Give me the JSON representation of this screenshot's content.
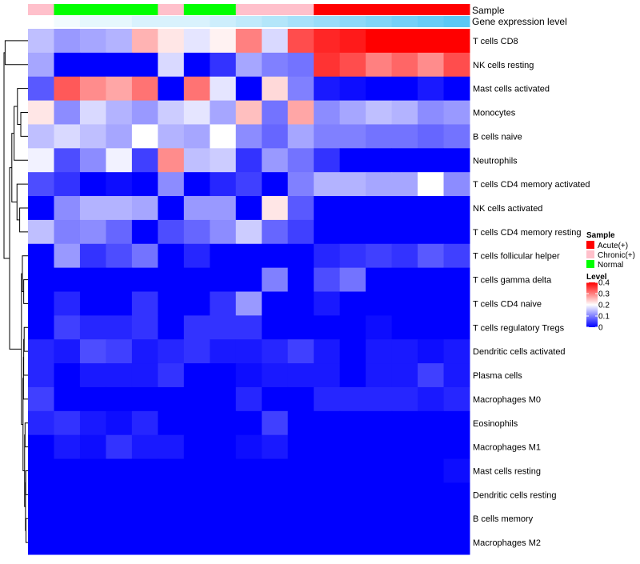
{
  "chart_data": {
    "type": "heatmap",
    "annotation_labels": {
      "sample": "Sample",
      "expression": "Gene expression level"
    },
    "sample_groups": [
      "Chronic(+)",
      "Normal",
      "Normal",
      "Normal",
      "Normal",
      "Chronic(+)",
      "Normal",
      "Normal",
      "Chronic(+)",
      "Chronic(+)",
      "Chronic(+)",
      "Acute(+)",
      "Acute(+)",
      "Acute(+)",
      "Acute(+)",
      "Acute(+)",
      "Acute(+)"
    ],
    "gene_expression_level": [
      0.02,
      0.03,
      0.04,
      0.04,
      0.05,
      0.05,
      0.05,
      0.06,
      0.07,
      0.08,
      0.09,
      0.1,
      0.11,
      0.12,
      0.13,
      0.14,
      0.15
    ],
    "rows": [
      "T cells CD8",
      "NK cells resting",
      "Mast cells activated",
      "Monocytes",
      "B cells naive",
      "Neutrophils",
      "T cells CD4 memory activated",
      "NK cells activated",
      "T cells CD4 memory resting",
      "T cells follicular helper",
      "T cells gamma delta",
      "T cells CD4 naive",
      "T cells regulatory  Tregs",
      "Dendritic cells activated",
      "Plasma cells",
      "Macrophages M0",
      "Eosinophils",
      "Macrophages M1",
      "Mast cells resting",
      "Dendritic cells resting",
      "B cells memory",
      "Macrophages M2"
    ],
    "values": [
      [
        0.15,
        0.12,
        0.13,
        0.14,
        0.26,
        0.22,
        0.18,
        0.21,
        0.3,
        0.17,
        0.34,
        0.37,
        0.38,
        0.4,
        0.4,
        0.4,
        0.4
      ],
      [
        0.13,
        0.0,
        0.0,
        0.0,
        0.0,
        0.17,
        0.0,
        0.04,
        0.13,
        0.1,
        0.09,
        0.36,
        0.34,
        0.3,
        0.32,
        0.29,
        0.34
      ],
      [
        0.07,
        0.33,
        0.29,
        0.27,
        0.31,
        0.0,
        0.31,
        0.18,
        0.0,
        0.23,
        0.1,
        0.02,
        0.01,
        0.0,
        0.0,
        0.02,
        0.0
      ],
      [
        0.22,
        0.11,
        0.17,
        0.14,
        0.12,
        0.16,
        0.18,
        0.13,
        0.25,
        0.09,
        0.27,
        0.11,
        0.13,
        0.15,
        0.14,
        0.11,
        0.12
      ],
      [
        0.15,
        0.17,
        0.15,
        0.13,
        0.2,
        0.14,
        0.13,
        0.2,
        0.11,
        0.08,
        0.13,
        0.1,
        0.1,
        0.09,
        0.09,
        0.08,
        0.09
      ],
      [
        0.19,
        0.06,
        0.11,
        0.19,
        0.05,
        0.29,
        0.15,
        0.16,
        0.04,
        0.12,
        0.09,
        0.04,
        0.0,
        0.0,
        0.0,
        0.0,
        0.0
      ],
      [
        0.06,
        0.04,
        0.0,
        0.01,
        0.0,
        0.11,
        0.0,
        0.03,
        0.05,
        0.0,
        0.1,
        0.14,
        0.14,
        0.13,
        0.13,
        0.2,
        0.11
      ],
      [
        0.0,
        0.11,
        0.14,
        0.14,
        0.13,
        0.0,
        0.12,
        0.12,
        0.0,
        0.22,
        0.07,
        0.0,
        0.0,
        0.0,
        0.0,
        0.0,
        0.0
      ],
      [
        0.15,
        0.1,
        0.11,
        0.08,
        0.0,
        0.06,
        0.08,
        0.11,
        0.16,
        0.08,
        0.05,
        0.0,
        0.0,
        0.0,
        0.0,
        0.0,
        0.0
      ],
      [
        0.0,
        0.12,
        0.04,
        0.06,
        0.09,
        0.0,
        0.03,
        0.0,
        0.0,
        0.0,
        0.0,
        0.03,
        0.04,
        0.05,
        0.04,
        0.07,
        0.05
      ],
      [
        0.0,
        0.0,
        0.0,
        0.0,
        0.0,
        0.0,
        0.0,
        0.0,
        0.0,
        0.1,
        0.0,
        0.06,
        0.09,
        0.0,
        0.0,
        0.0,
        0.0
      ],
      [
        0.0,
        0.03,
        0.0,
        0.0,
        0.04,
        0.0,
        0.0,
        0.04,
        0.12,
        0.0,
        0.0,
        0.02,
        0.0,
        0.0,
        0.0,
        0.0,
        0.0
      ],
      [
        0.0,
        0.05,
        0.03,
        0.03,
        0.04,
        0.0,
        0.04,
        0.04,
        0.04,
        0.0,
        0.0,
        0.0,
        0.0,
        0.01,
        0.0,
        0.0,
        0.0
      ],
      [
        0.03,
        0.02,
        0.06,
        0.05,
        0.02,
        0.03,
        0.04,
        0.02,
        0.02,
        0.03,
        0.05,
        0.02,
        0.0,
        0.02,
        0.02,
        0.01,
        0.02
      ],
      [
        0.03,
        0.0,
        0.02,
        0.02,
        0.02,
        0.04,
        0.0,
        0.0,
        0.01,
        0.02,
        0.02,
        0.02,
        0.0,
        0.02,
        0.02,
        0.05,
        0.02
      ],
      [
        0.05,
        0.0,
        0.0,
        0.0,
        0.0,
        0.0,
        0.0,
        0.0,
        0.03,
        0.0,
        0.0,
        0.03,
        0.03,
        0.03,
        0.03,
        0.02,
        0.03
      ],
      [
        0.03,
        0.04,
        0.02,
        0.01,
        0.03,
        0.0,
        0.0,
        0.0,
        0.0,
        0.05,
        0.0,
        0.0,
        0.0,
        0.0,
        0.0,
        0.0,
        0.0
      ],
      [
        0.0,
        0.02,
        0.01,
        0.04,
        0.02,
        0.02,
        0.0,
        0.0,
        0.01,
        0.02,
        0.0,
        0.0,
        0.0,
        0.0,
        0.0,
        0.0,
        0.0
      ],
      [
        0.0,
        0.0,
        0.0,
        0.0,
        0.0,
        0.0,
        0.0,
        0.0,
        0.0,
        0.0,
        0.0,
        0.0,
        0.0,
        0.0,
        0.0,
        0.0,
        0.01
      ],
      [
        0.0,
        0.0,
        0.0,
        0.0,
        0.0,
        0.0,
        0.0,
        0.0,
        0.0,
        0.0,
        0.0,
        0.0,
        0.0,
        0.0,
        0.0,
        0.0,
        0.0
      ],
      [
        0.0,
        0.0,
        0.0,
        0.0,
        0.0,
        0.0,
        0.0,
        0.0,
        0.0,
        0.0,
        0.0,
        0.0,
        0.0,
        0.0,
        0.0,
        0.0,
        0.0
      ],
      [
        0.0,
        0.0,
        0.0,
        0.0,
        0.0,
        0.0,
        0.0,
        0.0,
        0.0,
        0.0,
        0.0,
        0.0,
        0.0,
        0.0,
        0.0,
        0.0,
        0.0
      ]
    ],
    "legend": {
      "sample_title": "Sample",
      "sample_entries": [
        {
          "label": "Acute(+)",
          "color": "#ff0000"
        },
        {
          "label": "Chronic(+)",
          "color": "#ffc0cb"
        },
        {
          "label": "Normal",
          "color": "#00ff00"
        }
      ],
      "level_title": "Level",
      "level_ticks": [
        "0.4",
        "0.3",
        "0.2",
        "0.1",
        "0"
      ],
      "level_range": [
        0,
        0.4
      ]
    },
    "colors": {
      "low": "#0000ff",
      "mid": "#ffffff",
      "high": "#ff0000",
      "expression_low": "#ffffff",
      "expression_high": "#5bc8f5"
    },
    "row_dendrogram": true
  }
}
